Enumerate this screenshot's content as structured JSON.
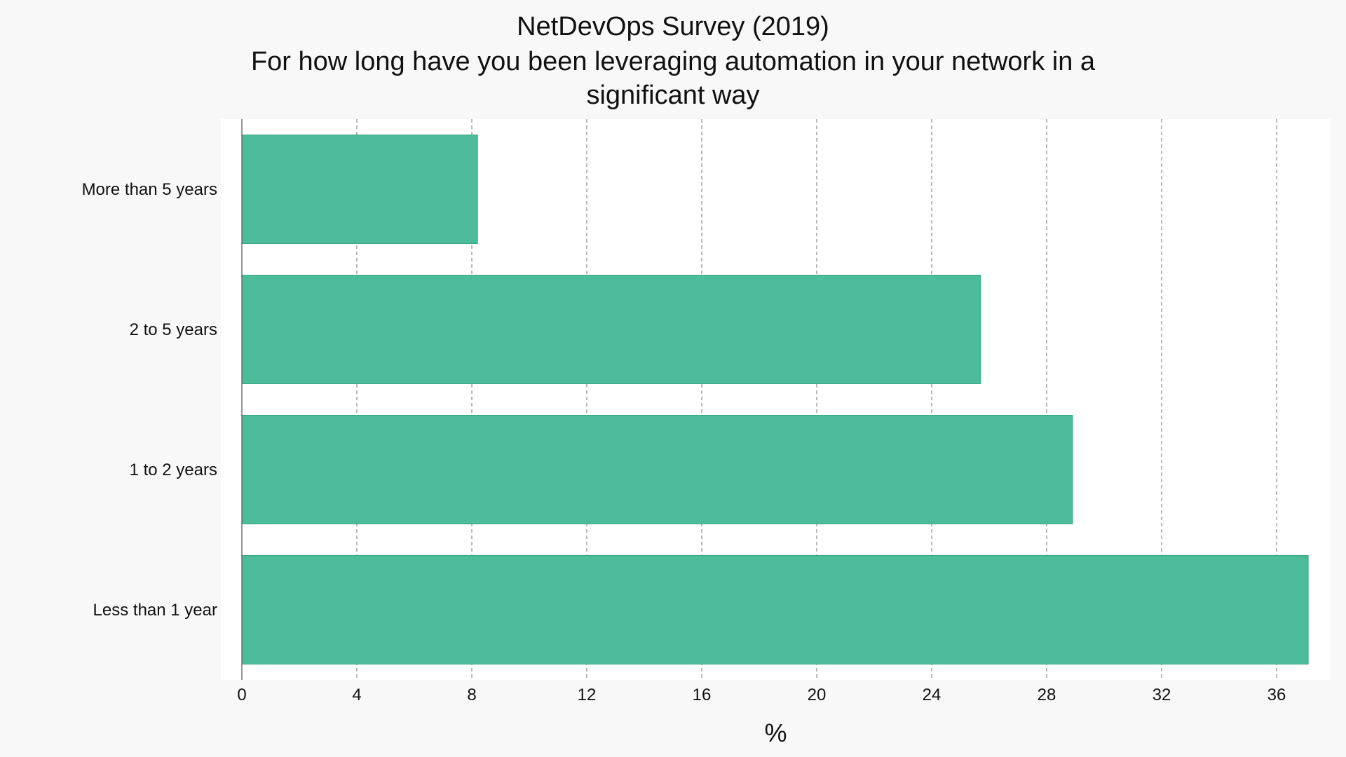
{
  "chart_data": {
    "type": "bar",
    "orientation": "horizontal",
    "title_lines": [
      "NetDevOps Survey (2019)",
      "For how long have you been leveraging automation in your network in a",
      "significant way"
    ],
    "categories": [
      "More than 5 years",
      "2 to 5 years",
      "1 to 2 years",
      "Less than 1 year"
    ],
    "values": [
      8.2,
      25.7,
      28.9,
      37.1
    ],
    "xlabel": "%",
    "ylabel": "",
    "xlim": [
      0,
      38
    ],
    "xticks": [
      0,
      4,
      8,
      12,
      16,
      20,
      24,
      28,
      32,
      36
    ],
    "grid": "vertical dashed",
    "colors": {
      "bar": "#4dbc9a",
      "bar_edge": "#3aa583",
      "plot_background": "#ffffff",
      "figure_background": "#f8f8f8"
    }
  }
}
